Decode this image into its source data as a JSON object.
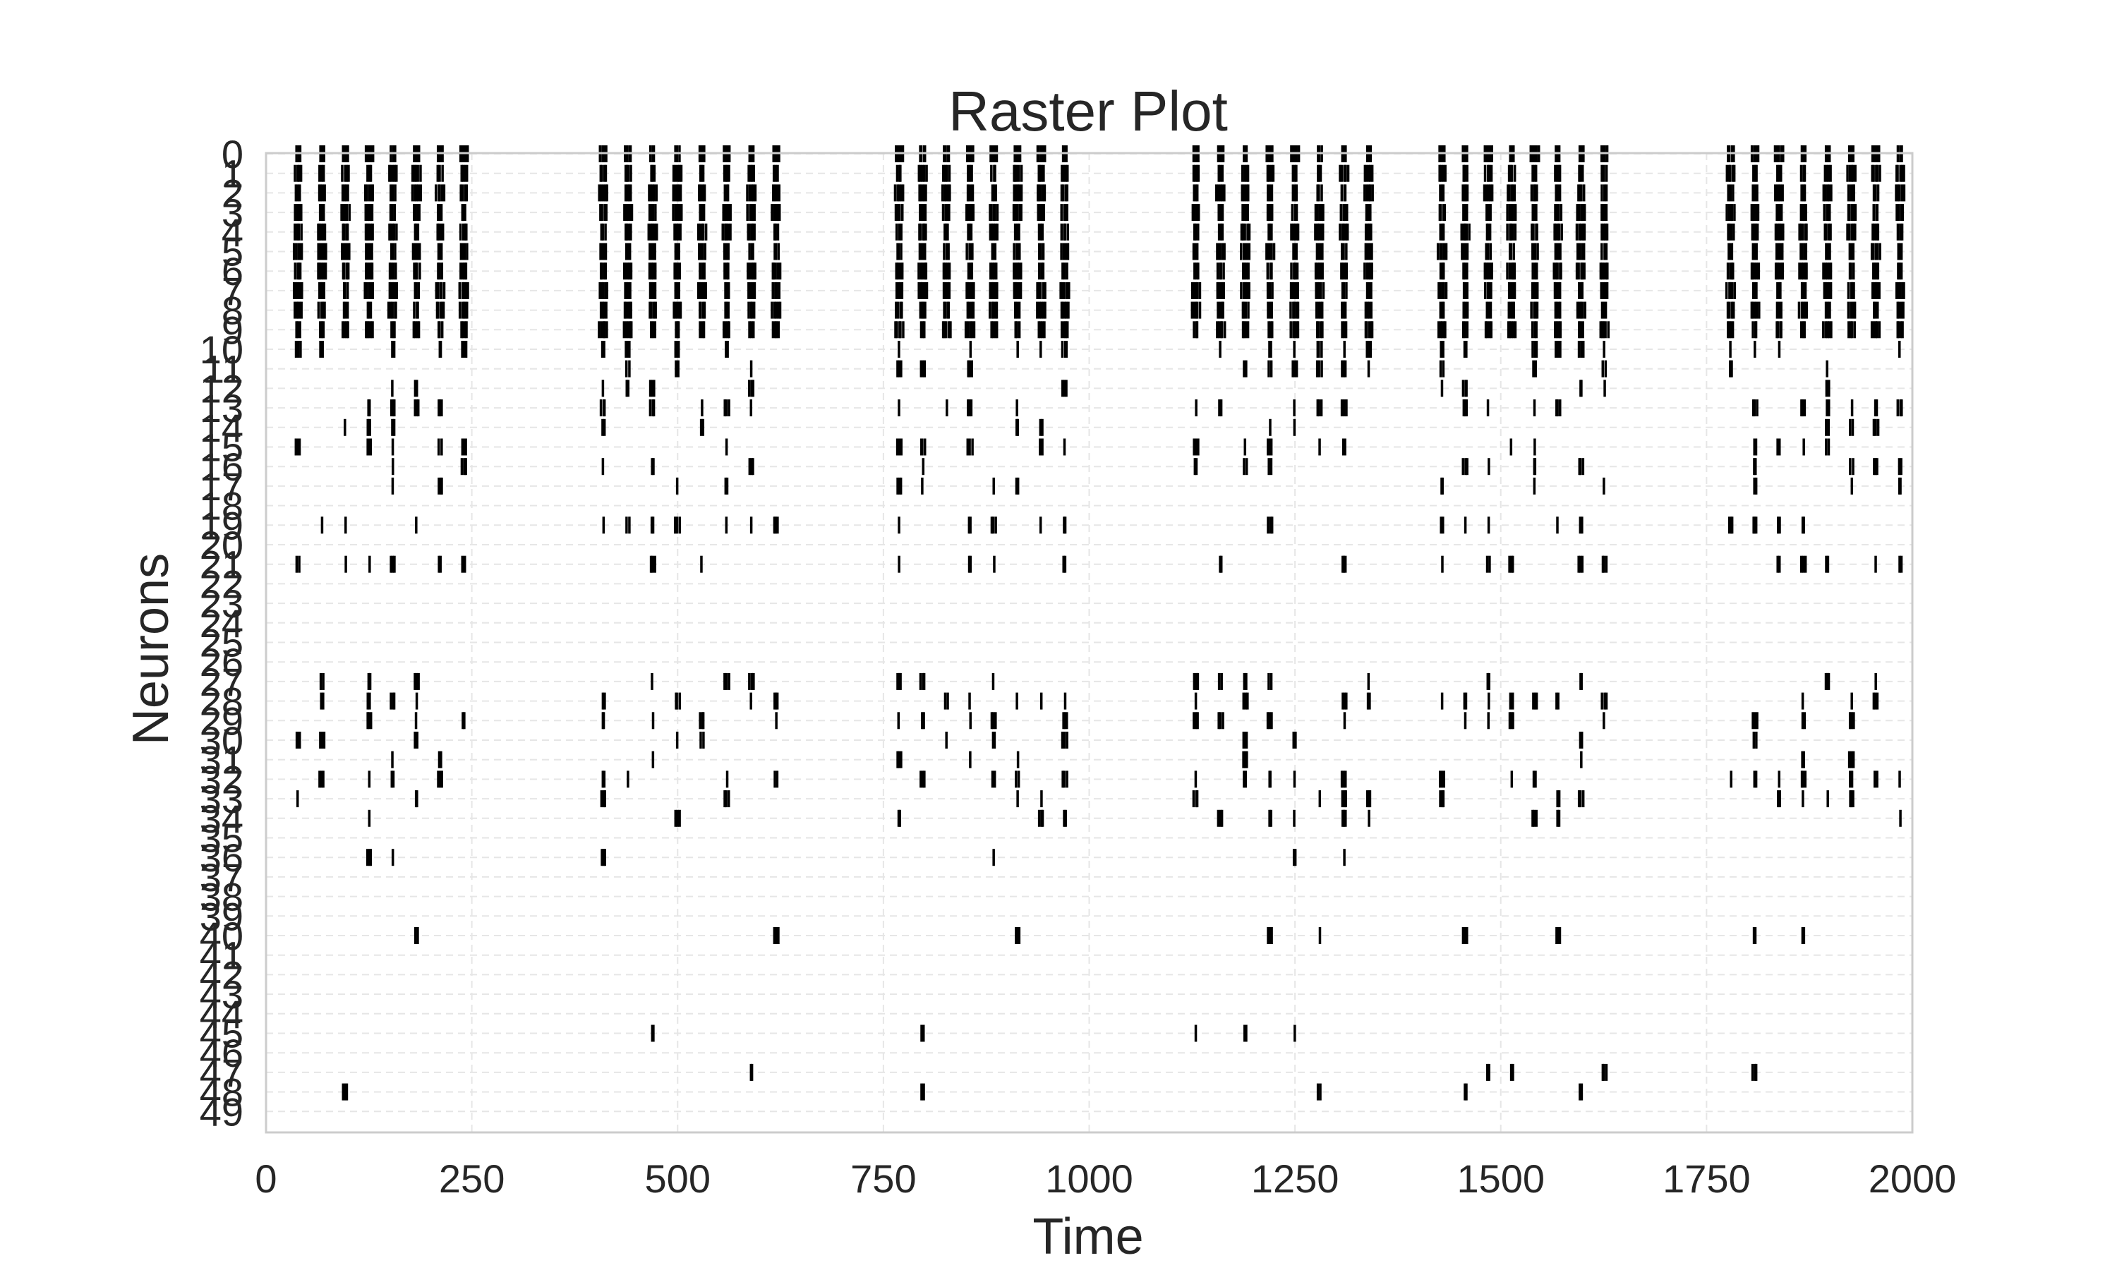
{
  "chart_data": {
    "type": "scatter",
    "marker": "vertical-line",
    "title": "Raster Plot",
    "xlabel": "Time",
    "ylabel": "Neurons",
    "xlim": [
      0,
      2000
    ],
    "ylim": [
      49,
      0
    ],
    "xticks": [
      0,
      250,
      500,
      750,
      1000,
      1250,
      1500,
      1750,
      2000
    ],
    "yticks": [
      0,
      1,
      2,
      3,
      4,
      5,
      6,
      7,
      8,
      9,
      10,
      11,
      12,
      13,
      14,
      15,
      16,
      17,
      18,
      19,
      20,
      21,
      22,
      23,
      24,
      25,
      26,
      27,
      28,
      29,
      30,
      31,
      32,
      33,
      34,
      35,
      36,
      37,
      38,
      39,
      40,
      41,
      42,
      43,
      44,
      45,
      46,
      47,
      48,
      49
    ],
    "grid": true,
    "event_color": "#000000",
    "burst_windows": [
      [
        25,
        255
      ],
      [
        395,
        635
      ],
      [
        755,
        985
      ],
      [
        1115,
        1355
      ],
      [
        1415,
        1640
      ],
      [
        1765,
        2000
      ]
    ],
    "spike_neurons": {
      "dense": [
        0,
        1,
        2,
        3,
        4,
        5,
        6,
        7,
        8,
        9
      ],
      "medium": [
        10,
        13,
        19,
        21,
        28,
        29,
        32
      ],
      "sparse": [
        11,
        12,
        14,
        15,
        16,
        17,
        27,
        30,
        31,
        33,
        34
      ],
      "rare": [
        36,
        40,
        45,
        47,
        48
      ],
      "silent": [
        18,
        20,
        22,
        23,
        24,
        25,
        26,
        35,
        37,
        38,
        39,
        41,
        42,
        43,
        44,
        46,
        49
      ]
    }
  }
}
